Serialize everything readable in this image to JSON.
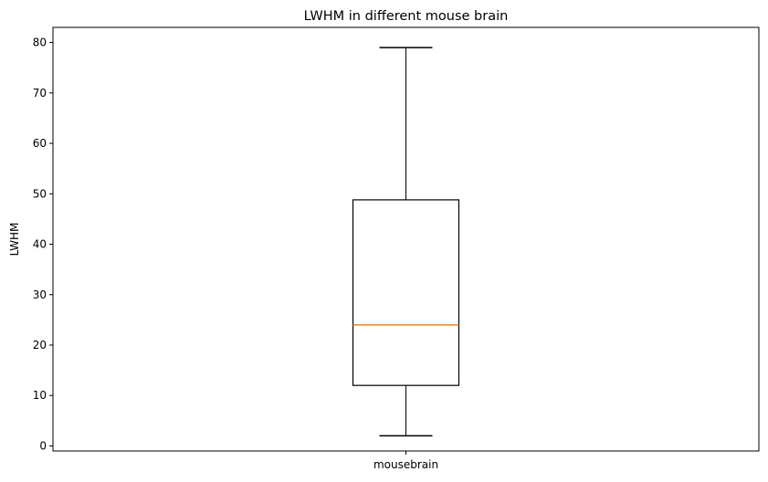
{
  "chart_data": {
    "type": "box",
    "title": "LWHM in different mouse brain",
    "xlabel": "",
    "ylabel": "LWHM",
    "categories": [
      "mousebrain"
    ],
    "boxes": [
      {
        "category": "mousebrain",
        "whisker_low": 2,
        "q1": 12,
        "median": 24,
        "q3": 48.8,
        "whisker_high": 79
      }
    ],
    "ylim": [
      -1,
      83
    ],
    "yticks": [
      0,
      10,
      20,
      30,
      40,
      50,
      60,
      70,
      80
    ],
    "grid": false,
    "colors": {
      "box": "#000000",
      "median": "#ff7f0e",
      "axes": "#000000"
    }
  }
}
